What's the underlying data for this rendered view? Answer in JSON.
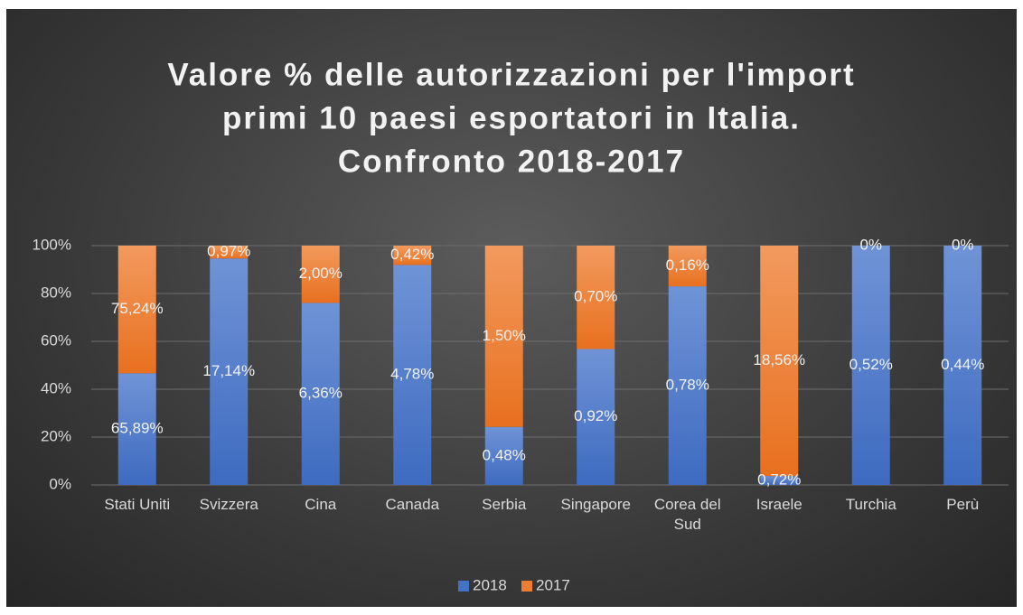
{
  "chart_data": {
    "type": "bar",
    "stacking": "percent",
    "title": [
      "Valore % delle autorizzazioni per l'import",
      "primi 10 paesi esportatori in Italia.",
      "Confronto 2018-2017"
    ],
    "categories": [
      "Stati Uniti",
      "Svizzera",
      "Cina",
      "Canada",
      "Serbia",
      "Singapore",
      "Corea del Sud",
      "Israele",
      "Turchia",
      "Perù"
    ],
    "series": [
      {
        "name": "2018",
        "color": "#4472c4",
        "values": [
          65.89,
          17.14,
          6.36,
          4.78,
          0.48,
          0.92,
          0.78,
          0.72,
          0.52,
          0.44
        ],
        "value_labels": [
          "65,89%",
          "17,14%",
          "6,36%",
          "4,78%",
          "0,48%",
          "0,92%",
          "0,78%",
          "0,72%",
          "0,52%",
          "0,44%"
        ]
      },
      {
        "name": "2017",
        "color": "#ed7d31",
        "values": [
          75.24,
          0.97,
          2.0,
          0.42,
          1.5,
          0.7,
          0.16,
          18.56,
          0,
          0
        ],
        "value_labels": [
          "75,24%",
          "0,97%",
          "2,00%",
          "0,42%",
          "1,50%",
          "0,70%",
          "0,16%",
          "18,56%",
          "0%",
          "0%"
        ]
      }
    ],
    "ylim": [
      0,
      100
    ],
    "yticks": [
      {
        "value": 0,
        "label": "0%"
      },
      {
        "value": 20,
        "label": "20%"
      },
      {
        "value": 40,
        "label": "40%"
      },
      {
        "value": 60,
        "label": "60%"
      },
      {
        "value": 80,
        "label": "80%"
      },
      {
        "value": 100,
        "label": "100%"
      }
    ],
    "grid": true,
    "legend": "bottom"
  }
}
